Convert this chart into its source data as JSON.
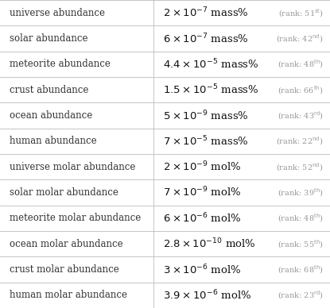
{
  "rows": [
    {
      "label": "universe abundance",
      "coeff": "2",
      "exp": "-7",
      "unit": "mass%",
      "rank_num": "51",
      "rank_ord": "st"
    },
    {
      "label": "solar abundance",
      "coeff": "6",
      "exp": "-7",
      "unit": "mass%",
      "rank_num": "42",
      "rank_ord": "nd"
    },
    {
      "label": "meteorite abundance",
      "coeff": "4.4",
      "exp": "-5",
      "unit": "mass%",
      "rank_num": "48",
      "rank_ord": "th"
    },
    {
      "label": "crust abundance",
      "coeff": "1.5",
      "exp": "-5",
      "unit": "mass%",
      "rank_num": "66",
      "rank_ord": "th"
    },
    {
      "label": "ocean abundance",
      "coeff": "5",
      "exp": "-9",
      "unit": "mass%",
      "rank_num": "43",
      "rank_ord": "rd"
    },
    {
      "label": "human abundance",
      "coeff": "7",
      "exp": "-5",
      "unit": "mass%",
      "rank_num": "22",
      "rank_ord": "nd"
    },
    {
      "label": "universe molar abundance",
      "coeff": "2",
      "exp": "-9",
      "unit": "mol%",
      "rank_num": "52",
      "rank_ord": "nd"
    },
    {
      "label": "solar molar abundance",
      "coeff": "7",
      "exp": "-9",
      "unit": "mol%",
      "rank_num": "39",
      "rank_ord": "th"
    },
    {
      "label": "meteorite molar abundance",
      "coeff": "6",
      "exp": "-6",
      "unit": "mol%",
      "rank_num": "48",
      "rank_ord": "th"
    },
    {
      "label": "ocean molar abundance",
      "coeff": "2.8",
      "exp": "-10",
      "unit": "mol%",
      "rank_num": "55",
      "rank_ord": "th"
    },
    {
      "label": "crust molar abundance",
      "coeff": "3",
      "exp": "-6",
      "unit": "mol%",
      "rank_num": "68",
      "rank_ord": "th"
    },
    {
      "label": "human molar abundance",
      "coeff": "3.9",
      "exp": "-6",
      "unit": "mol%",
      "rank_num": "23",
      "rank_ord": "rd"
    }
  ],
  "col_split": 0.465,
  "bg_color": "#ffffff",
  "line_color": "#bbbbbb",
  "label_color": "#333333",
  "value_color": "#111111",
  "rank_color": "#999999",
  "label_fontsize": 8.5,
  "value_fontsize": 9.5,
  "rank_fontsize": 7.0
}
